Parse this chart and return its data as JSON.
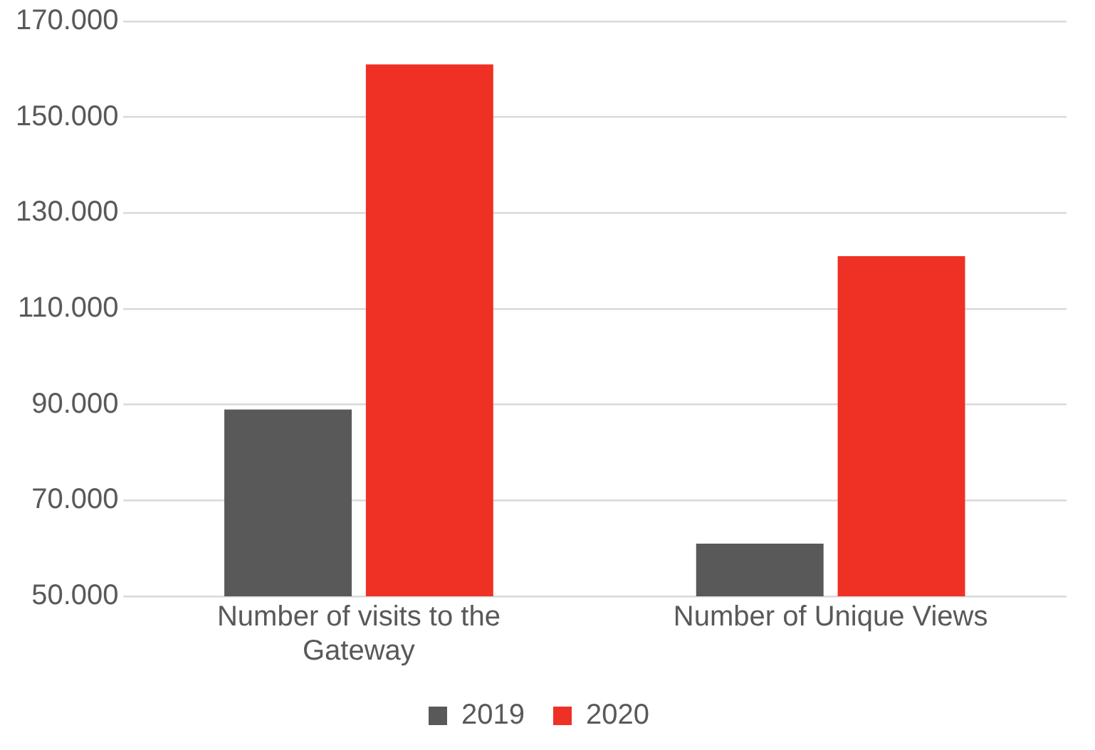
{
  "chart_data": {
    "type": "bar",
    "categories": [
      "Number of visits to the Gateway",
      "Number of Unique Views"
    ],
    "series": [
      {
        "name": "2019",
        "color": "#595959",
        "values": [
          89000,
          61000
        ]
      },
      {
        "name": "2020",
        "color": "#ee3124",
        "values": [
          161000,
          121000
        ]
      }
    ],
    "ylim": [
      50000,
      170000
    ],
    "yticks": [
      {
        "value": 50000,
        "label": "50.000"
      },
      {
        "value": 70000,
        "label": "70.000"
      },
      {
        "value": 90000,
        "label": "90.000"
      },
      {
        "value": 110000,
        "label": "110.000"
      },
      {
        "value": 130000,
        "label": "130.000"
      },
      {
        "value": 150000,
        "label": "150.000"
      },
      {
        "value": 170000,
        "label": "170.000"
      }
    ],
    "grid": "y",
    "legend": "bottom"
  }
}
